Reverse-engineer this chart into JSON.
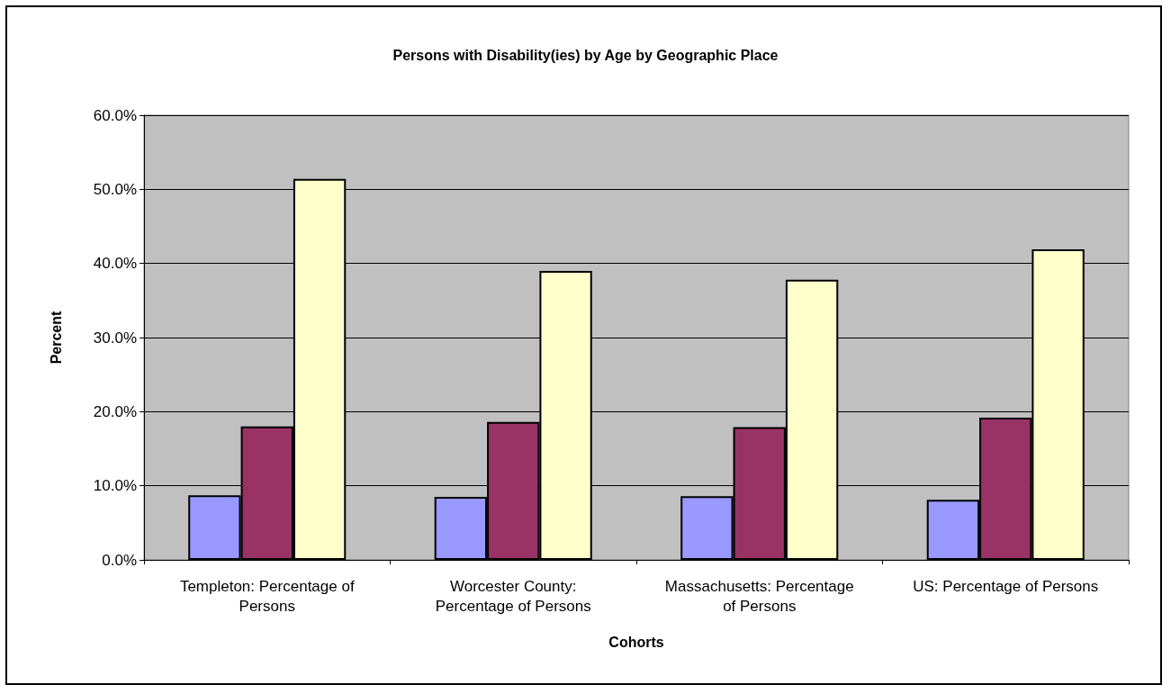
{
  "chart_data": {
    "type": "bar",
    "title": "Persons with Disability(ies) by Age by Geographic Place",
    "xlabel": "Cohorts",
    "ylabel": "Percent",
    "categories": [
      "Templeton: Percentage of Persons",
      "Worcester County: Percentage of Persons",
      "Massachusetts: Percentage of Persons",
      "US: Percentage of Persons"
    ],
    "series": [
      {
        "color": "#9999ff",
        "values": [
          8.7,
          8.5,
          8.6,
          8.1
        ]
      },
      {
        "color": "#993366",
        "values": [
          18.0,
          18.6,
          17.9,
          19.2
        ]
      },
      {
        "color": "#ffffcc",
        "values": [
          51.4,
          39.0,
          37.8,
          41.9
        ]
      }
    ],
    "ylim": [
      0,
      60
    ],
    "yticks": [
      {
        "value": 0,
        "label": "0.0%"
      },
      {
        "value": 10,
        "label": "10.0%"
      },
      {
        "value": 20,
        "label": "20.0%"
      },
      {
        "value": 30,
        "label": "30.0%"
      },
      {
        "value": 40,
        "label": "40.0%"
      },
      {
        "value": 50,
        "label": "50.0%"
      },
      {
        "value": 60,
        "label": "60.0%"
      }
    ],
    "grid": "y"
  }
}
